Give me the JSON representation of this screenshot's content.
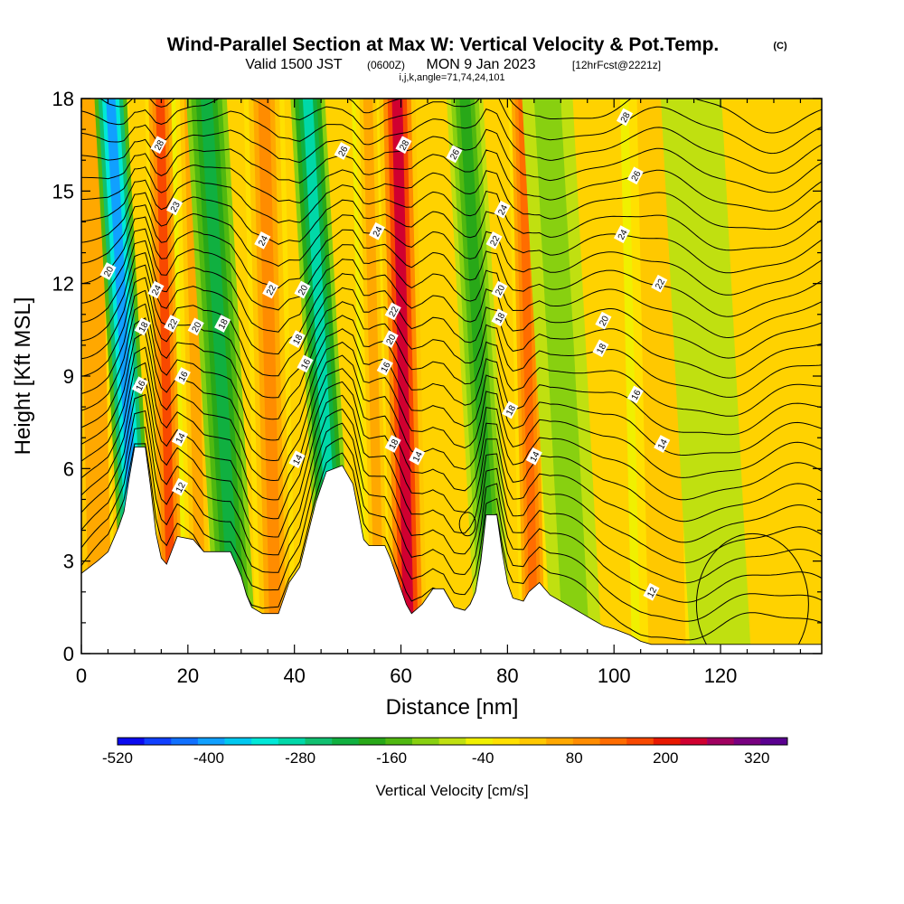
{
  "header": {
    "title": "Wind-Parallel Section at Max W: Vertical Velocity & Pot.Temp.",
    "copyright": "(C)",
    "valid_a": "Valid 1500 JST",
    "valid_utc": "(0600Z)",
    "valid_b": "MON 9 Jan 2023",
    "forecast": "[12hrFcst@2221z]",
    "params": "i,j,k,angle=71,74,24,101"
  },
  "chart_data": {
    "type": "heatmap",
    "title": "Wind-Parallel Section at Max W: Vertical Velocity & Pot.Temp.",
    "xlabel": "Distance [nm]",
    "ylabel": "Height [Kft MSL]",
    "xlim": [
      0,
      139
    ],
    "ylim": [
      0,
      18
    ],
    "xticks": [
      0,
      20,
      40,
      60,
      80,
      100,
      120
    ],
    "yticks": [
      0,
      3,
      6,
      9,
      12,
      15,
      18
    ],
    "grid": false,
    "colorbar": {
      "label": "Vertical Velocity [cm/s]",
      "min": -520,
      "max": 360,
      "step": 40,
      "tick_values": [
        -520,
        -400,
        -280,
        -160,
        -40,
        80,
        200,
        320
      ],
      "colors": [
        "#0a0af0",
        "#1040ff",
        "#1070ff",
        "#10a0ff",
        "#00c8f0",
        "#00e8d8",
        "#00d8a8",
        "#10c070",
        "#10b040",
        "#28a818",
        "#50b810",
        "#88d010",
        "#c0e010",
        "#f0f000",
        "#ffe000",
        "#ffc800",
        "#ffa800",
        "#ff8c00",
        "#ff6c00",
        "#f84800",
        "#e81800",
        "#d00030",
        "#a00060",
        "#780080",
        "#5a0090"
      ],
      "background": "#ffd200"
    },
    "terrain_profile": [
      [
        0,
        2.6
      ],
      [
        3,
        3.0
      ],
      [
        5,
        3.3
      ],
      [
        7,
        4.1
      ],
      [
        8,
        4.6
      ],
      [
        9,
        5.7
      ],
      [
        10,
        6.7
      ],
      [
        12,
        6.7
      ],
      [
        13,
        5.4
      ],
      [
        14,
        3.9
      ],
      [
        15,
        3.1
      ],
      [
        16,
        2.9
      ],
      [
        18,
        3.8
      ],
      [
        21,
        3.7
      ],
      [
        23,
        3.3
      ],
      [
        28,
        3.3
      ],
      [
        30,
        2.5
      ],
      [
        31,
        1.9
      ],
      [
        32,
        1.5
      ],
      [
        34,
        1.3
      ],
      [
        37,
        1.3
      ],
      [
        38,
        1.8
      ],
      [
        39,
        2.3
      ],
      [
        41,
        2.8
      ],
      [
        43,
        4.2
      ],
      [
        44,
        4.9
      ],
      [
        46,
        5.9
      ],
      [
        49,
        6.1
      ],
      [
        51,
        5.5
      ],
      [
        52,
        4.6
      ],
      [
        53,
        3.7
      ],
      [
        54,
        3.5
      ],
      [
        57,
        3.5
      ],
      [
        58,
        3.1
      ],
      [
        59,
        2.6
      ],
      [
        60,
        2.1
      ],
      [
        61,
        1.6
      ],
      [
        62,
        1.3
      ],
      [
        64,
        1.6
      ],
      [
        66,
        2.1
      ],
      [
        68,
        2.1
      ],
      [
        69,
        1.8
      ],
      [
        70,
        1.5
      ],
      [
        72,
        1.4
      ],
      [
        73,
        1.6
      ],
      [
        74,
        2.0
      ],
      [
        75,
        3.0
      ],
      [
        76,
        4.5
      ],
      [
        78,
        4.5
      ],
      [
        79,
        3.3
      ],
      [
        80,
        2.3
      ],
      [
        81,
        1.8
      ],
      [
        83,
        1.7
      ],
      [
        84,
        2.0
      ],
      [
        86,
        2.3
      ],
      [
        88,
        1.9
      ],
      [
        90,
        1.7
      ],
      [
        92,
        1.5
      ],
      [
        94,
        1.3
      ],
      [
        96,
        1.1
      ],
      [
        98,
        0.9
      ],
      [
        100,
        0.8
      ],
      [
        103,
        0.6
      ],
      [
        105,
        0.4
      ],
      [
        107,
        0.3
      ],
      [
        139,
        0.3
      ]
    ],
    "vertical_velocity_bands": [
      {
        "x": 4,
        "w": 2.5,
        "value": 150
      },
      {
        "x": 8.5,
        "w": 1.4,
        "value": 200
      },
      {
        "x": 11,
        "w": 1.6,
        "value": -380
      },
      {
        "x": 17,
        "w": 1.5,
        "value": 240
      },
      {
        "x": 22.5,
        "w": 1.8,
        "value": 120
      },
      {
        "x": 29,
        "w": 2.0,
        "value": -200
      },
      {
        "x": 36.5,
        "w": 2.0,
        "value": 160
      },
      {
        "x": 48,
        "w": 1.7,
        "value": -250
      },
      {
        "x": 56,
        "w": 1.6,
        "value": 120
      },
      {
        "x": 61.5,
        "w": 1.8,
        "value": 320
      },
      {
        "x": 77.5,
        "w": 1.8,
        "value": -140
      },
      {
        "x": 85,
        "w": 1.4,
        "value": 220
      },
      {
        "x": 93,
        "w": 2.5,
        "value": -60
      },
      {
        "x": 110,
        "w": 3.5,
        "value": 100
      },
      {
        "x": 120,
        "w": 3.0,
        "value": -40
      }
    ],
    "theta_contours": {
      "base_values": [
        12,
        14,
        16,
        18,
        20,
        22,
        24,
        26,
        28
      ],
      "labels": [
        {
          "text": "28",
          "x": 14.5,
          "y": 16.5
        },
        {
          "text": "23",
          "x": 17.5,
          "y": 14.5
        },
        {
          "text": "20",
          "x": 5,
          "y": 12.4
        },
        {
          "text": "24",
          "x": 14,
          "y": 11.8
        },
        {
          "text": "18",
          "x": 11.5,
          "y": 10.6
        },
        {
          "text": "22",
          "x": 17,
          "y": 10.7
        },
        {
          "text": "16",
          "x": 11,
          "y": 8.7
        },
        {
          "text": "16",
          "x": 19,
          "y": 9.0
        },
        {
          "text": "14",
          "x": 18.5,
          "y": 7.0
        },
        {
          "text": "12",
          "x": 18.5,
          "y": 5.4
        },
        {
          "text": "20",
          "x": 21.5,
          "y": 10.6
        },
        {
          "text": "18",
          "x": 26.5,
          "y": 10.7
        },
        {
          "text": "24",
          "x": 34,
          "y": 13.4
        },
        {
          "text": "22",
          "x": 35.5,
          "y": 11.8
        },
        {
          "text": "20",
          "x": 41.5,
          "y": 11.8
        },
        {
          "text": "18",
          "x": 40.5,
          "y": 10.2
        },
        {
          "text": "16",
          "x": 42,
          "y": 9.4
        },
        {
          "text": "14",
          "x": 40.5,
          "y": 6.3
        },
        {
          "text": "26",
          "x": 49,
          "y": 16.3
        },
        {
          "text": "24",
          "x": 55.5,
          "y": 13.7
        },
        {
          "text": "28",
          "x": 60.5,
          "y": 16.5
        },
        {
          "text": "26",
          "x": 70,
          "y": 16.2
        },
        {
          "text": "22",
          "x": 58.5,
          "y": 11.1
        },
        {
          "text": "20",
          "x": 58,
          "y": 10.2
        },
        {
          "text": "16",
          "x": 57,
          "y": 9.3
        },
        {
          "text": "18",
          "x": 58.5,
          "y": 6.8
        },
        {
          "text": "14",
          "x": 63,
          "y": 6.4
        },
        {
          "text": "24",
          "x": 79,
          "y": 14.4
        },
        {
          "text": "22",
          "x": 77.5,
          "y": 13.4
        },
        {
          "text": "20",
          "x": 78.5,
          "y": 11.8
        },
        {
          "text": "18",
          "x": 78.5,
          "y": 10.9
        },
        {
          "text": "18",
          "x": 80.5,
          "y": 7.9
        },
        {
          "text": "14",
          "x": 85,
          "y": 6.4
        },
        {
          "text": "28",
          "x": 102,
          "y": 17.4
        },
        {
          "text": "26",
          "x": 104,
          "y": 15.5
        },
        {
          "text": "24",
          "x": 101.5,
          "y": 13.6
        },
        {
          "text": "22",
          "x": 108.5,
          "y": 12.0
        },
        {
          "text": "20",
          "x": 98,
          "y": 10.8
        },
        {
          "text": "18",
          "x": 97.5,
          "y": 9.9
        },
        {
          "text": "16",
          "x": 104,
          "y": 8.4
        },
        {
          "text": "14",
          "x": 109,
          "y": 6.8
        },
        {
          "text": "12",
          "x": 107,
          "y": 2.0
        }
      ]
    }
  }
}
